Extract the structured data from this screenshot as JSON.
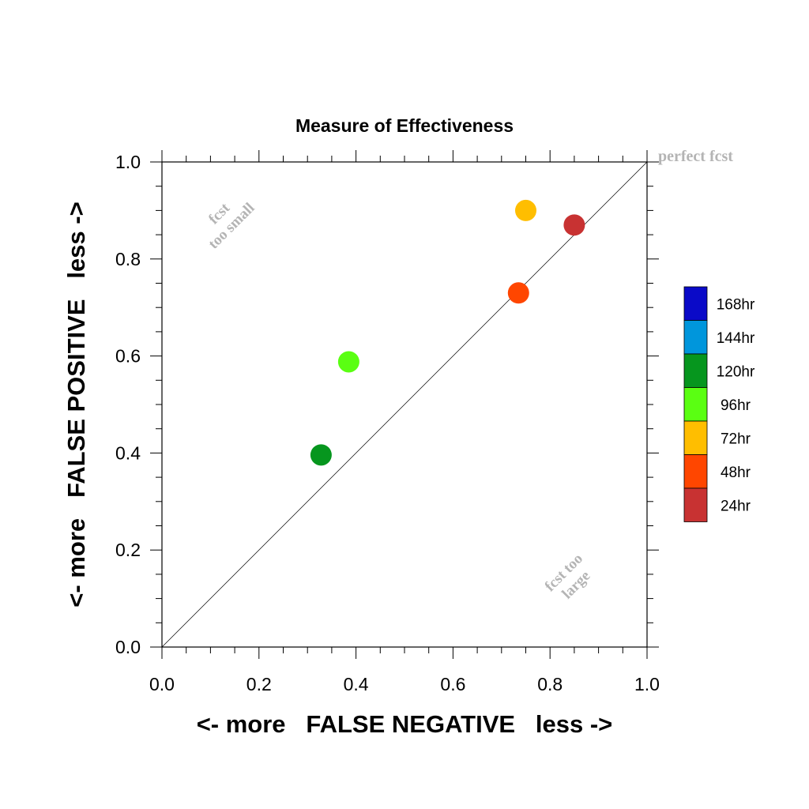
{
  "chart_data": {
    "type": "scatter",
    "title": "Measure of Effectiveness",
    "xlabel": "<- more   FALSE NEGATIVE   less ->",
    "ylabel": "<- more   FALSE POSITIVE   less ->",
    "xlim": [
      0.0,
      1.0
    ],
    "ylim": [
      0.0,
      1.0
    ],
    "x_tick_labels": [
      "0.0",
      "0.2",
      "0.4",
      "0.6",
      "0.8",
      "1.0"
    ],
    "y_tick_labels": [
      "0.0",
      "0.2",
      "0.4",
      "0.6",
      "0.8",
      "1.0"
    ],
    "grid": false,
    "diagonal_reference_line": true,
    "annotations": {
      "perfect": "perfect fcst",
      "too_small_line1": "fcst",
      "too_small_line2": "too small",
      "too_large_line1": "fcst too",
      "too_large_line2": "large"
    },
    "legend": {
      "placement": "right",
      "entries": [
        {
          "label": "168hr",
          "color": "#0a0ac8"
        },
        {
          "label": "144hr",
          "color": "#0096dc"
        },
        {
          "label": "120hr",
          "color": "#06961e"
        },
        {
          "label": "96hr",
          "color": "#5aff12"
        },
        {
          "label": "72hr",
          "color": "#ffbe00"
        },
        {
          "label": "48hr",
          "color": "#ff4600"
        },
        {
          "label": "24hr",
          "color": "#c83232"
        }
      ]
    },
    "points": [
      {
        "lead": "24hr",
        "x": 0.85,
        "y": 0.87,
        "color": "#c83232"
      },
      {
        "lead": "48hr",
        "x": 0.735,
        "y": 0.73,
        "color": "#ff4600"
      },
      {
        "lead": "72hr",
        "x": 0.75,
        "y": 0.9,
        "color": "#ffbe00"
      },
      {
        "lead": "96hr",
        "x": 0.385,
        "y": 0.588,
        "color": "#5aff12"
      },
      {
        "lead": "120hr",
        "x": 0.328,
        "y": 0.396,
        "color": "#06961e"
      }
    ]
  }
}
